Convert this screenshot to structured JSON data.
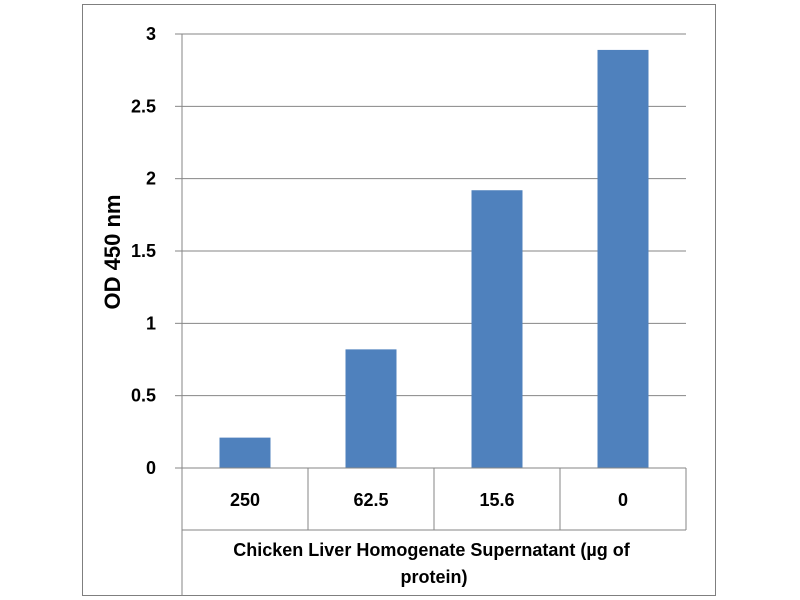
{
  "chart_data": {
    "type": "bar",
    "title": "",
    "xlabel": "Chicken Liver Homogenate Supernatant (µg of protein)",
    "xlabel_lines": [
      "Chicken Liver Homogenate Supernatant (µg of",
      "protein)"
    ],
    "ylabel": "OD 450 nm",
    "categories": [
      "250",
      "62.5",
      "15.6",
      "0"
    ],
    "values": [
      0.21,
      0.82,
      1.92,
      2.89
    ],
    "ylim": [
      0,
      3
    ],
    "yticks": [
      0,
      0.5,
      1,
      1.5,
      2,
      2.5,
      3
    ],
    "ytick_labels": [
      "0",
      "0.5",
      "1",
      "1.5",
      "2",
      "2.5",
      "3"
    ],
    "grid": true,
    "legend": "none",
    "bar_color": "#4f81bd",
    "grid_color": "#868686"
  }
}
